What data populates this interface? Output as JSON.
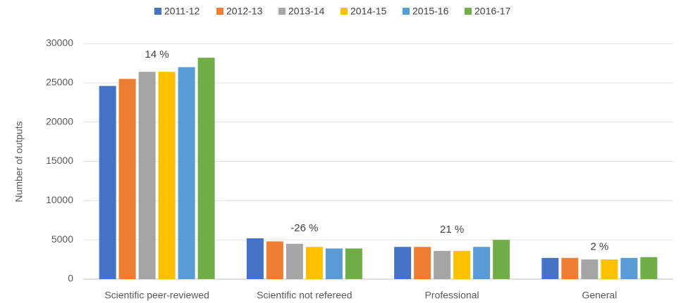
{
  "chart_data": {
    "type": "bar",
    "categories": [
      "Scientific peer-reviewed",
      "Scientific not refereed",
      "Professional",
      "General"
    ],
    "series": [
      {
        "name": "2011-12",
        "color": "#4472c4",
        "values": [
          24600,
          5200,
          4100,
          2700
        ]
      },
      {
        "name": "2012-13",
        "color": "#ed7d31",
        "values": [
          25500,
          4800,
          4100,
          2700
        ]
      },
      {
        "name": "2013-14",
        "color": "#a5a5a5",
        "values": [
          26400,
          4500,
          3600,
          2500
        ]
      },
      {
        "name": "2014-15",
        "color": "#ffc000",
        "values": [
          26400,
          4100,
          3600,
          2500
        ]
      },
      {
        "name": "2015-16",
        "color": "#5b9bd5",
        "values": [
          27000,
          3900,
          4100,
          2700
        ]
      },
      {
        "name": "2016-17",
        "color": "#70ad47",
        "values": [
          28200,
          3900,
          5000,
          2800
        ]
      }
    ],
    "annotations": [
      "14 %",
      "-26 %",
      "21 %",
      "2 %"
    ],
    "ylabel": "Number  of outputs",
    "ylim": [
      0,
      30000
    ],
    "yticks": [
      0,
      5000,
      10000,
      15000,
      20000,
      25000,
      30000
    ],
    "grid": true,
    "legend": "top"
  }
}
